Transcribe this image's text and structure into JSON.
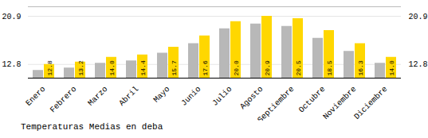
{
  "chart_data": {
    "type": "bar",
    "title": "Temperaturas Medias en deba",
    "categories": [
      "Enero",
      "Febrero",
      "Marzo",
      "Abril",
      "Mayo",
      "Junio",
      "Julio",
      "Agosto",
      "Septiembre",
      "Octubre",
      "Noviembre",
      "Diciembre"
    ],
    "series": [
      {
        "color": "#B8B8B8",
        "values": [
          11.8,
          12.2,
          13.0,
          13.4,
          14.7,
          16.3,
          18.8,
          19.6,
          19.2,
          17.2,
          15.0,
          13.0
        ]
      },
      {
        "color": "#FFD700",
        "values": [
          12.8,
          13.2,
          14.0,
          14.4,
          15.7,
          17.6,
          20.0,
          20.9,
          20.5,
          18.5,
          16.3,
          14.0
        ],
        "data_labels": true,
        "value_labels": [
          "12.8",
          "13.2",
          "14.0",
          "14.4",
          "15.7",
          "17.6",
          "20.0",
          "20.9",
          "20.5",
          "18.5",
          "16.3",
          "14.0"
        ]
      }
    ],
    "ylim": [
      10.5,
      22.5
    ],
    "yticks": [
      12.8,
      20.9
    ],
    "grid": true
  }
}
